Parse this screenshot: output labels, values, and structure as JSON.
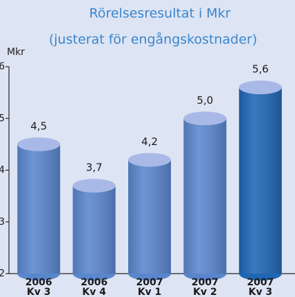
{
  "chart_data": {
    "type": "bar",
    "title": "Rörelsesresultat i Mkr",
    "subtitle": "(justerat för engångskostnader)",
    "y_label": "Mkr",
    "categories": [
      [
        "2006",
        "Kv 3"
      ],
      [
        "2006",
        "Kv 4"
      ],
      [
        "2007",
        "Kv 1"
      ],
      [
        "2007",
        "Kv 2"
      ],
      [
        "2007",
        "Kv 3"
      ]
    ],
    "values": [
      4.5,
      3.7,
      4.2,
      5.0,
      5.6
    ],
    "value_labels": [
      "4,5",
      "3,7",
      "4,2",
      "5,0",
      "5,6"
    ],
    "colors": [
      "#5a86cd",
      "#5a86cd",
      "#5a86cd",
      "#5a86cd",
      "#1f66b5"
    ],
    "top_color": "#a9b9e7",
    "ylim": [
      2,
      6
    ],
    "yticks": [
      2,
      3,
      4,
      5,
      6
    ]
  }
}
